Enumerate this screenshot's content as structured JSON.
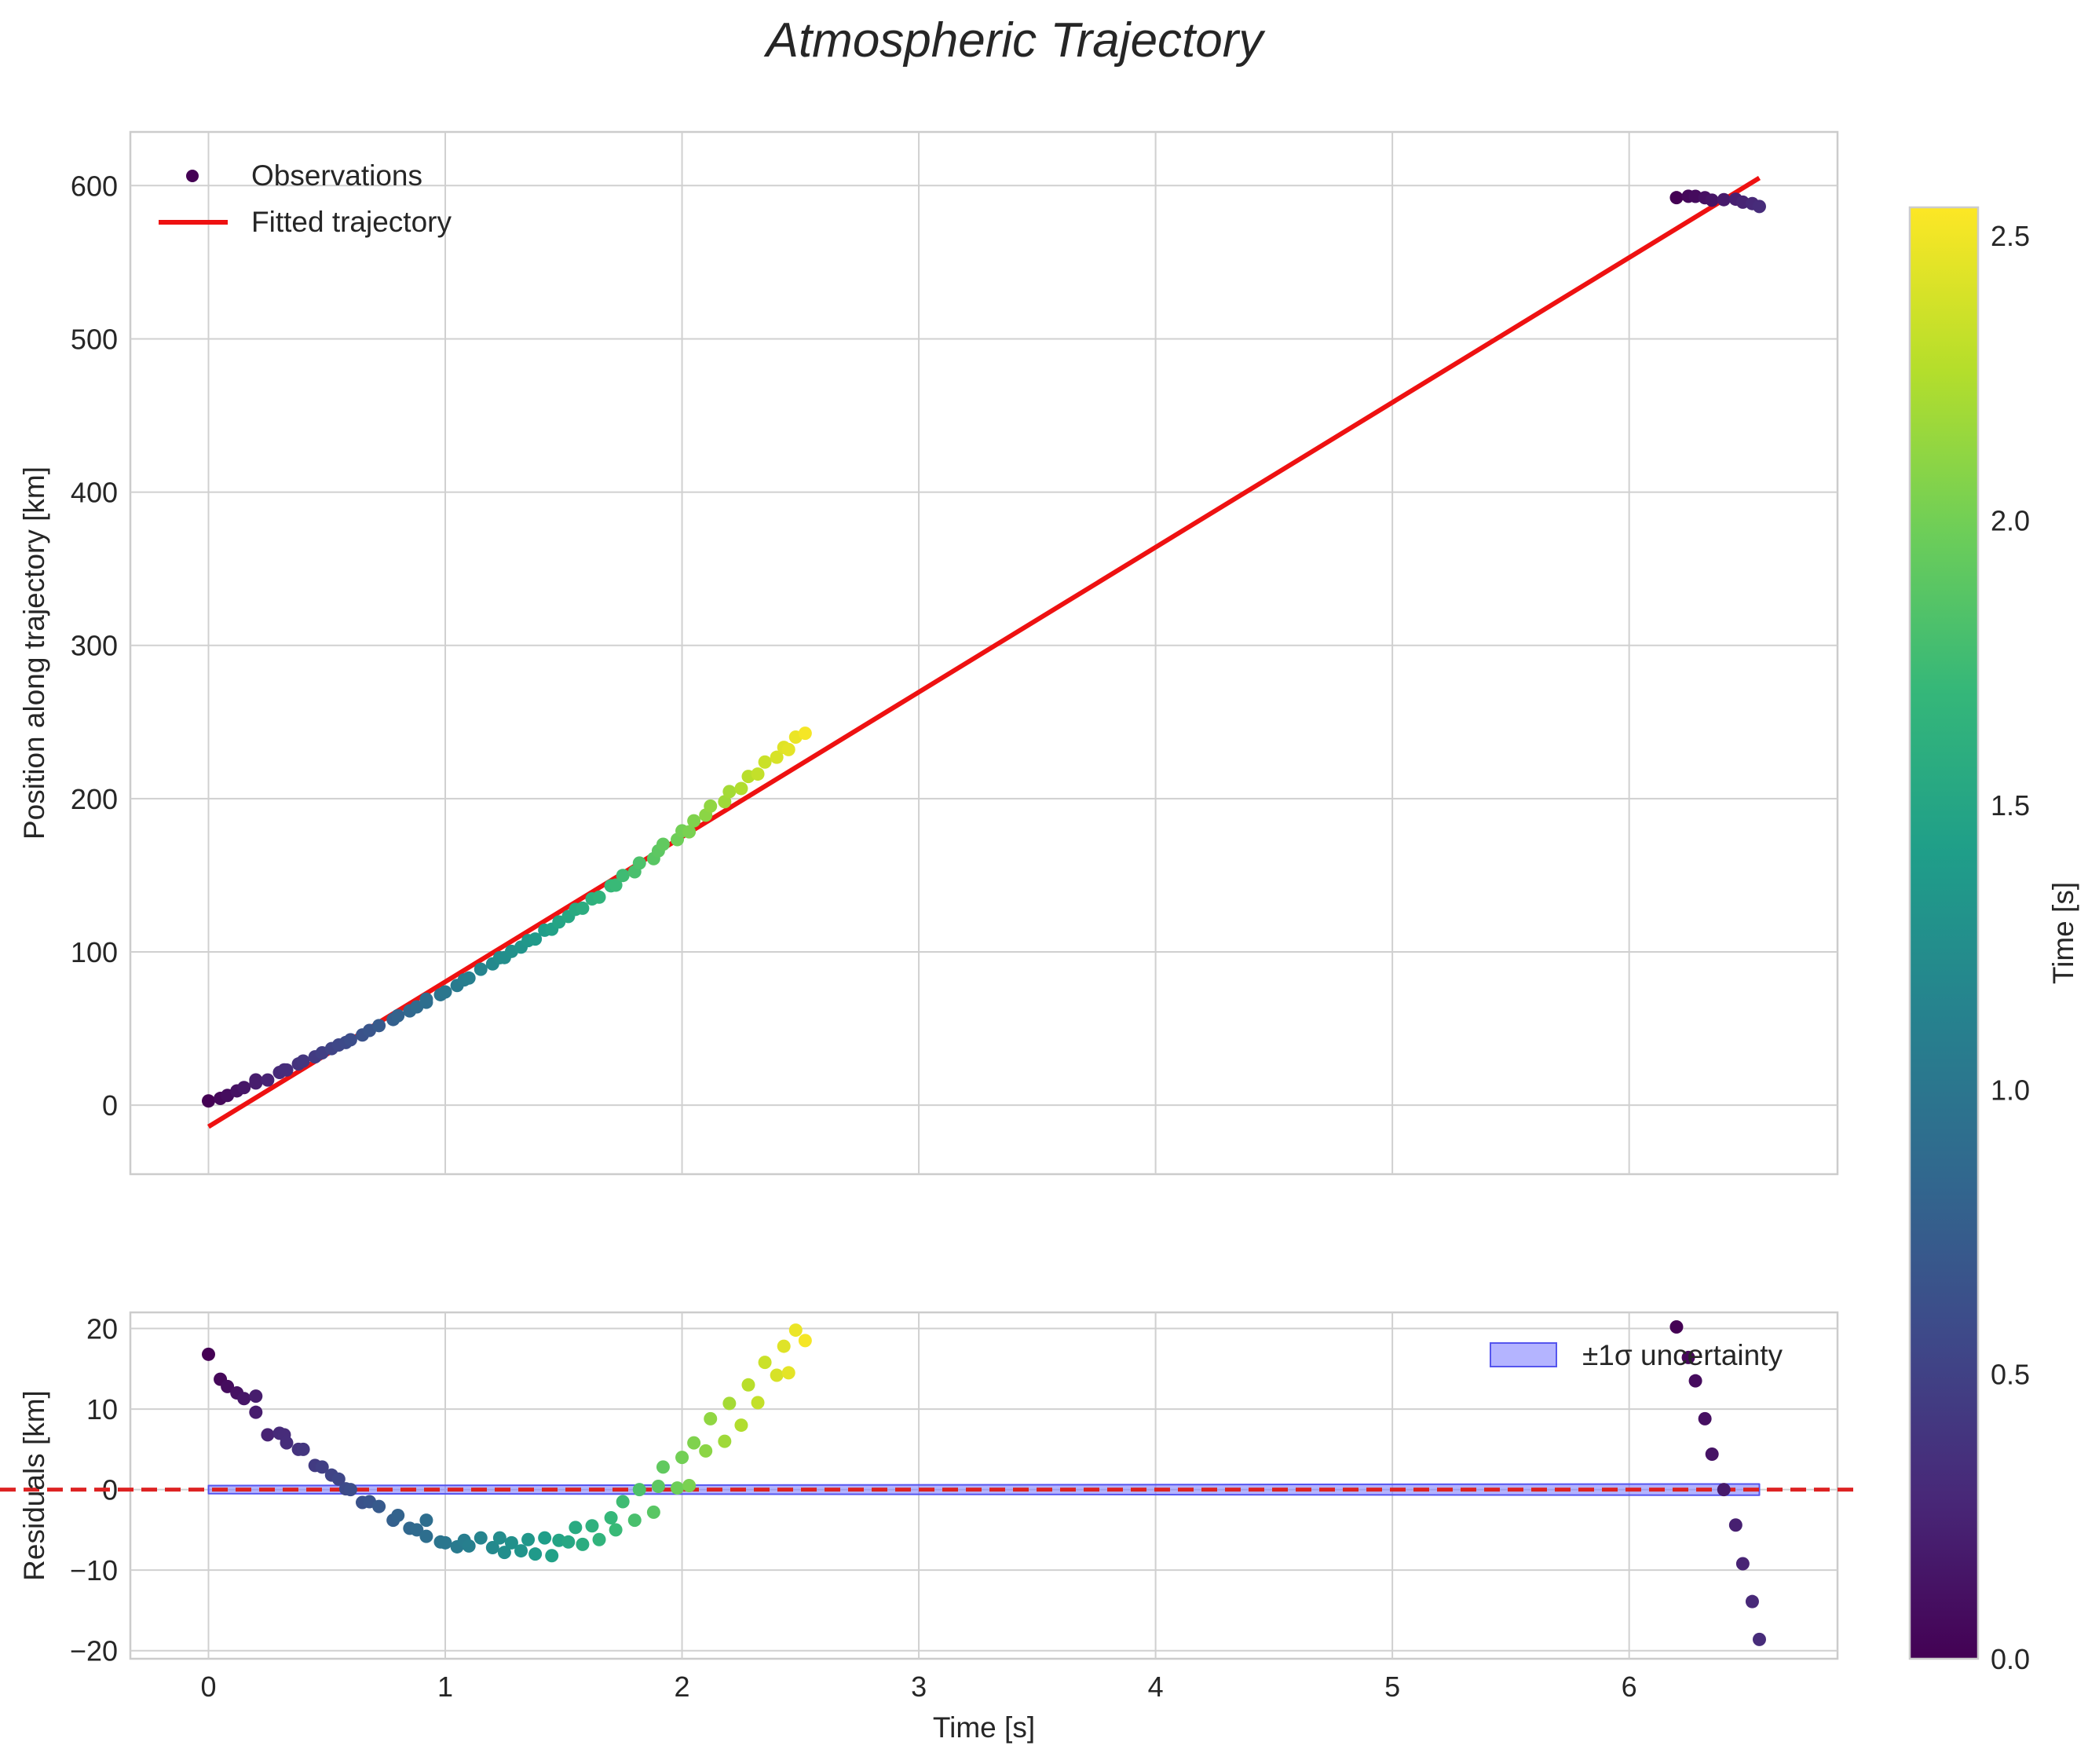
{
  "chart_data": [
    {
      "type": "scatter",
      "panel": "top",
      "title": "Atmospheric Trajectory",
      "xlabel": "",
      "ylabel": "Position along trajectory [km]",
      "xlim": [
        -0.33,
        6.88
      ],
      "ylim": [
        -45,
        635
      ],
      "xticks": [
        0,
        1,
        2,
        3,
        4,
        5,
        6
      ],
      "yticks": [
        0,
        100,
        200,
        300,
        400,
        500,
        600
      ],
      "ytick_labels": [
        "0",
        "100",
        "200",
        "300",
        "400",
        "500",
        "600"
      ],
      "grid": true,
      "legend": {
        "placement": "top-left",
        "entries": [
          "Observations",
          "Fitted trajectory"
        ]
      },
      "fit_line": {
        "name": "Fitted trajectory",
        "color": "#ee1111",
        "x": [
          0.0,
          6.55
        ],
        "y": [
          -14,
          605
        ]
      },
      "observations_note": "Positions computed as fit value plus residual"
    },
    {
      "type": "scatter",
      "panel": "bottom",
      "xlabel": "Time [s]",
      "ylabel": "Residuals [km]",
      "xlim": [
        -0.33,
        6.88
      ],
      "ylim": [
        -21,
        22
      ],
      "xticks": [
        0,
        1,
        2,
        3,
        4,
        5,
        6
      ],
      "xtick_labels": [
        "0",
        "1",
        "2",
        "3",
        "4",
        "5",
        "6"
      ],
      "yticks": [
        -20,
        -10,
        0,
        10,
        20
      ],
      "ytick_labels": [
        "−20",
        "−10",
        "0",
        "10",
        "20"
      ],
      "grid": true,
      "zero_line": {
        "y": 0,
        "color": "#dd2222",
        "style": "dashed"
      },
      "uncertainty_band": {
        "name": "±1σ uncertainty",
        "color": "#7777ff",
        "x": [
          0.0,
          6.55
        ],
        "lower": [
          -0.5,
          -0.7
        ],
        "upper": [
          0.5,
          0.7
        ]
      },
      "legend": {
        "placement": "top-right",
        "entries": [
          "±1σ uncertainty"
        ]
      },
      "residuals": [
        [
          0.0,
          16.8
        ],
        [
          0.05,
          13.7
        ],
        [
          0.08,
          12.8
        ],
        [
          0.12,
          12.0
        ],
        [
          0.15,
          11.3
        ],
        [
          0.2,
          11.6
        ],
        [
          0.2,
          9.6
        ],
        [
          0.25,
          6.8
        ],
        [
          0.3,
          7.0
        ],
        [
          0.32,
          6.8
        ],
        [
          0.33,
          5.8
        ],
        [
          0.38,
          5.0
        ],
        [
          0.4,
          5.0
        ],
        [
          0.45,
          3.0
        ],
        [
          0.48,
          2.8
        ],
        [
          0.52,
          1.8
        ],
        [
          0.55,
          1.3
        ],
        [
          0.58,
          0.1
        ],
        [
          0.6,
          0.0
        ],
        [
          0.65,
          -1.6
        ],
        [
          0.68,
          -1.5
        ],
        [
          0.72,
          -2.1
        ],
        [
          0.78,
          -3.8
        ],
        [
          0.8,
          -3.2
        ],
        [
          0.85,
          -4.8
        ],
        [
          0.88,
          -5.0
        ],
        [
          0.92,
          -5.8
        ],
        [
          0.92,
          -3.8
        ],
        [
          0.98,
          -6.5
        ],
        [
          1.0,
          -6.6
        ],
        [
          1.05,
          -7.1
        ],
        [
          1.08,
          -6.3
        ],
        [
          1.1,
          -7.0
        ],
        [
          1.15,
          -6.0
        ],
        [
          1.2,
          -7.2
        ],
        [
          1.23,
          -6.0
        ],
        [
          1.25,
          -7.8
        ],
        [
          1.28,
          -6.6
        ],
        [
          1.32,
          -7.6
        ],
        [
          1.35,
          -6.2
        ],
        [
          1.38,
          -8.0
        ],
        [
          1.42,
          -6.0
        ],
        [
          1.45,
          -8.2
        ],
        [
          1.48,
          -6.3
        ],
        [
          1.52,
          -6.5
        ],
        [
          1.55,
          -4.7
        ],
        [
          1.58,
          -6.8
        ],
        [
          1.62,
          -4.5
        ],
        [
          1.65,
          -6.2
        ],
        [
          1.7,
          -3.5
        ],
        [
          1.72,
          -5.0
        ],
        [
          1.75,
          -1.5
        ],
        [
          1.8,
          -3.8
        ],
        [
          1.82,
          0.0
        ],
        [
          1.88,
          -2.8
        ],
        [
          1.9,
          0.4
        ],
        [
          1.92,
          2.8
        ],
        [
          1.98,
          0.2
        ],
        [
          2.0,
          4.0
        ],
        [
          2.03,
          0.5
        ],
        [
          2.05,
          5.8
        ],
        [
          2.1,
          4.8
        ],
        [
          2.12,
          8.8
        ],
        [
          2.18,
          6.0
        ],
        [
          2.2,
          10.7
        ],
        [
          2.25,
          8.0
        ],
        [
          2.28,
          13.0
        ],
        [
          2.32,
          10.8
        ],
        [
          2.35,
          15.8
        ],
        [
          2.4,
          14.2
        ],
        [
          2.43,
          17.8
        ],
        [
          2.45,
          14.5
        ],
        [
          2.48,
          19.8
        ],
        [
          2.52,
          18.5
        ],
        [
          6.2,
          20.2
        ],
        [
          6.25,
          16.4
        ],
        [
          6.28,
          13.5
        ],
        [
          6.32,
          8.8
        ],
        [
          6.35,
          4.4
        ],
        [
          6.4,
          0.0
        ],
        [
          6.45,
          -4.4
        ],
        [
          6.48,
          -9.2
        ],
        [
          6.52,
          -13.9
        ],
        [
          6.55,
          -18.6
        ]
      ],
      "point_color_rule": "colored by time; early-time positive residuals for t > 6 colored as start of colormap"
    },
    {
      "type": "colorbar",
      "label": "Time [s]",
      "range": [
        0.0,
        2.55
      ],
      "ticks": [
        0.0,
        0.5,
        1.0,
        1.5,
        2.0,
        2.5
      ],
      "tick_labels": [
        "0.0",
        "0.5",
        "1.0",
        "1.5",
        "2.0",
        "2.5"
      ],
      "colormap": "viridis",
      "stops": [
        "#440154",
        "#482878",
        "#3e4989",
        "#31688e",
        "#26828e",
        "#1f9e89",
        "#35b779",
        "#6ece58",
        "#b5de2b",
        "#fde725"
      ]
    }
  ]
}
